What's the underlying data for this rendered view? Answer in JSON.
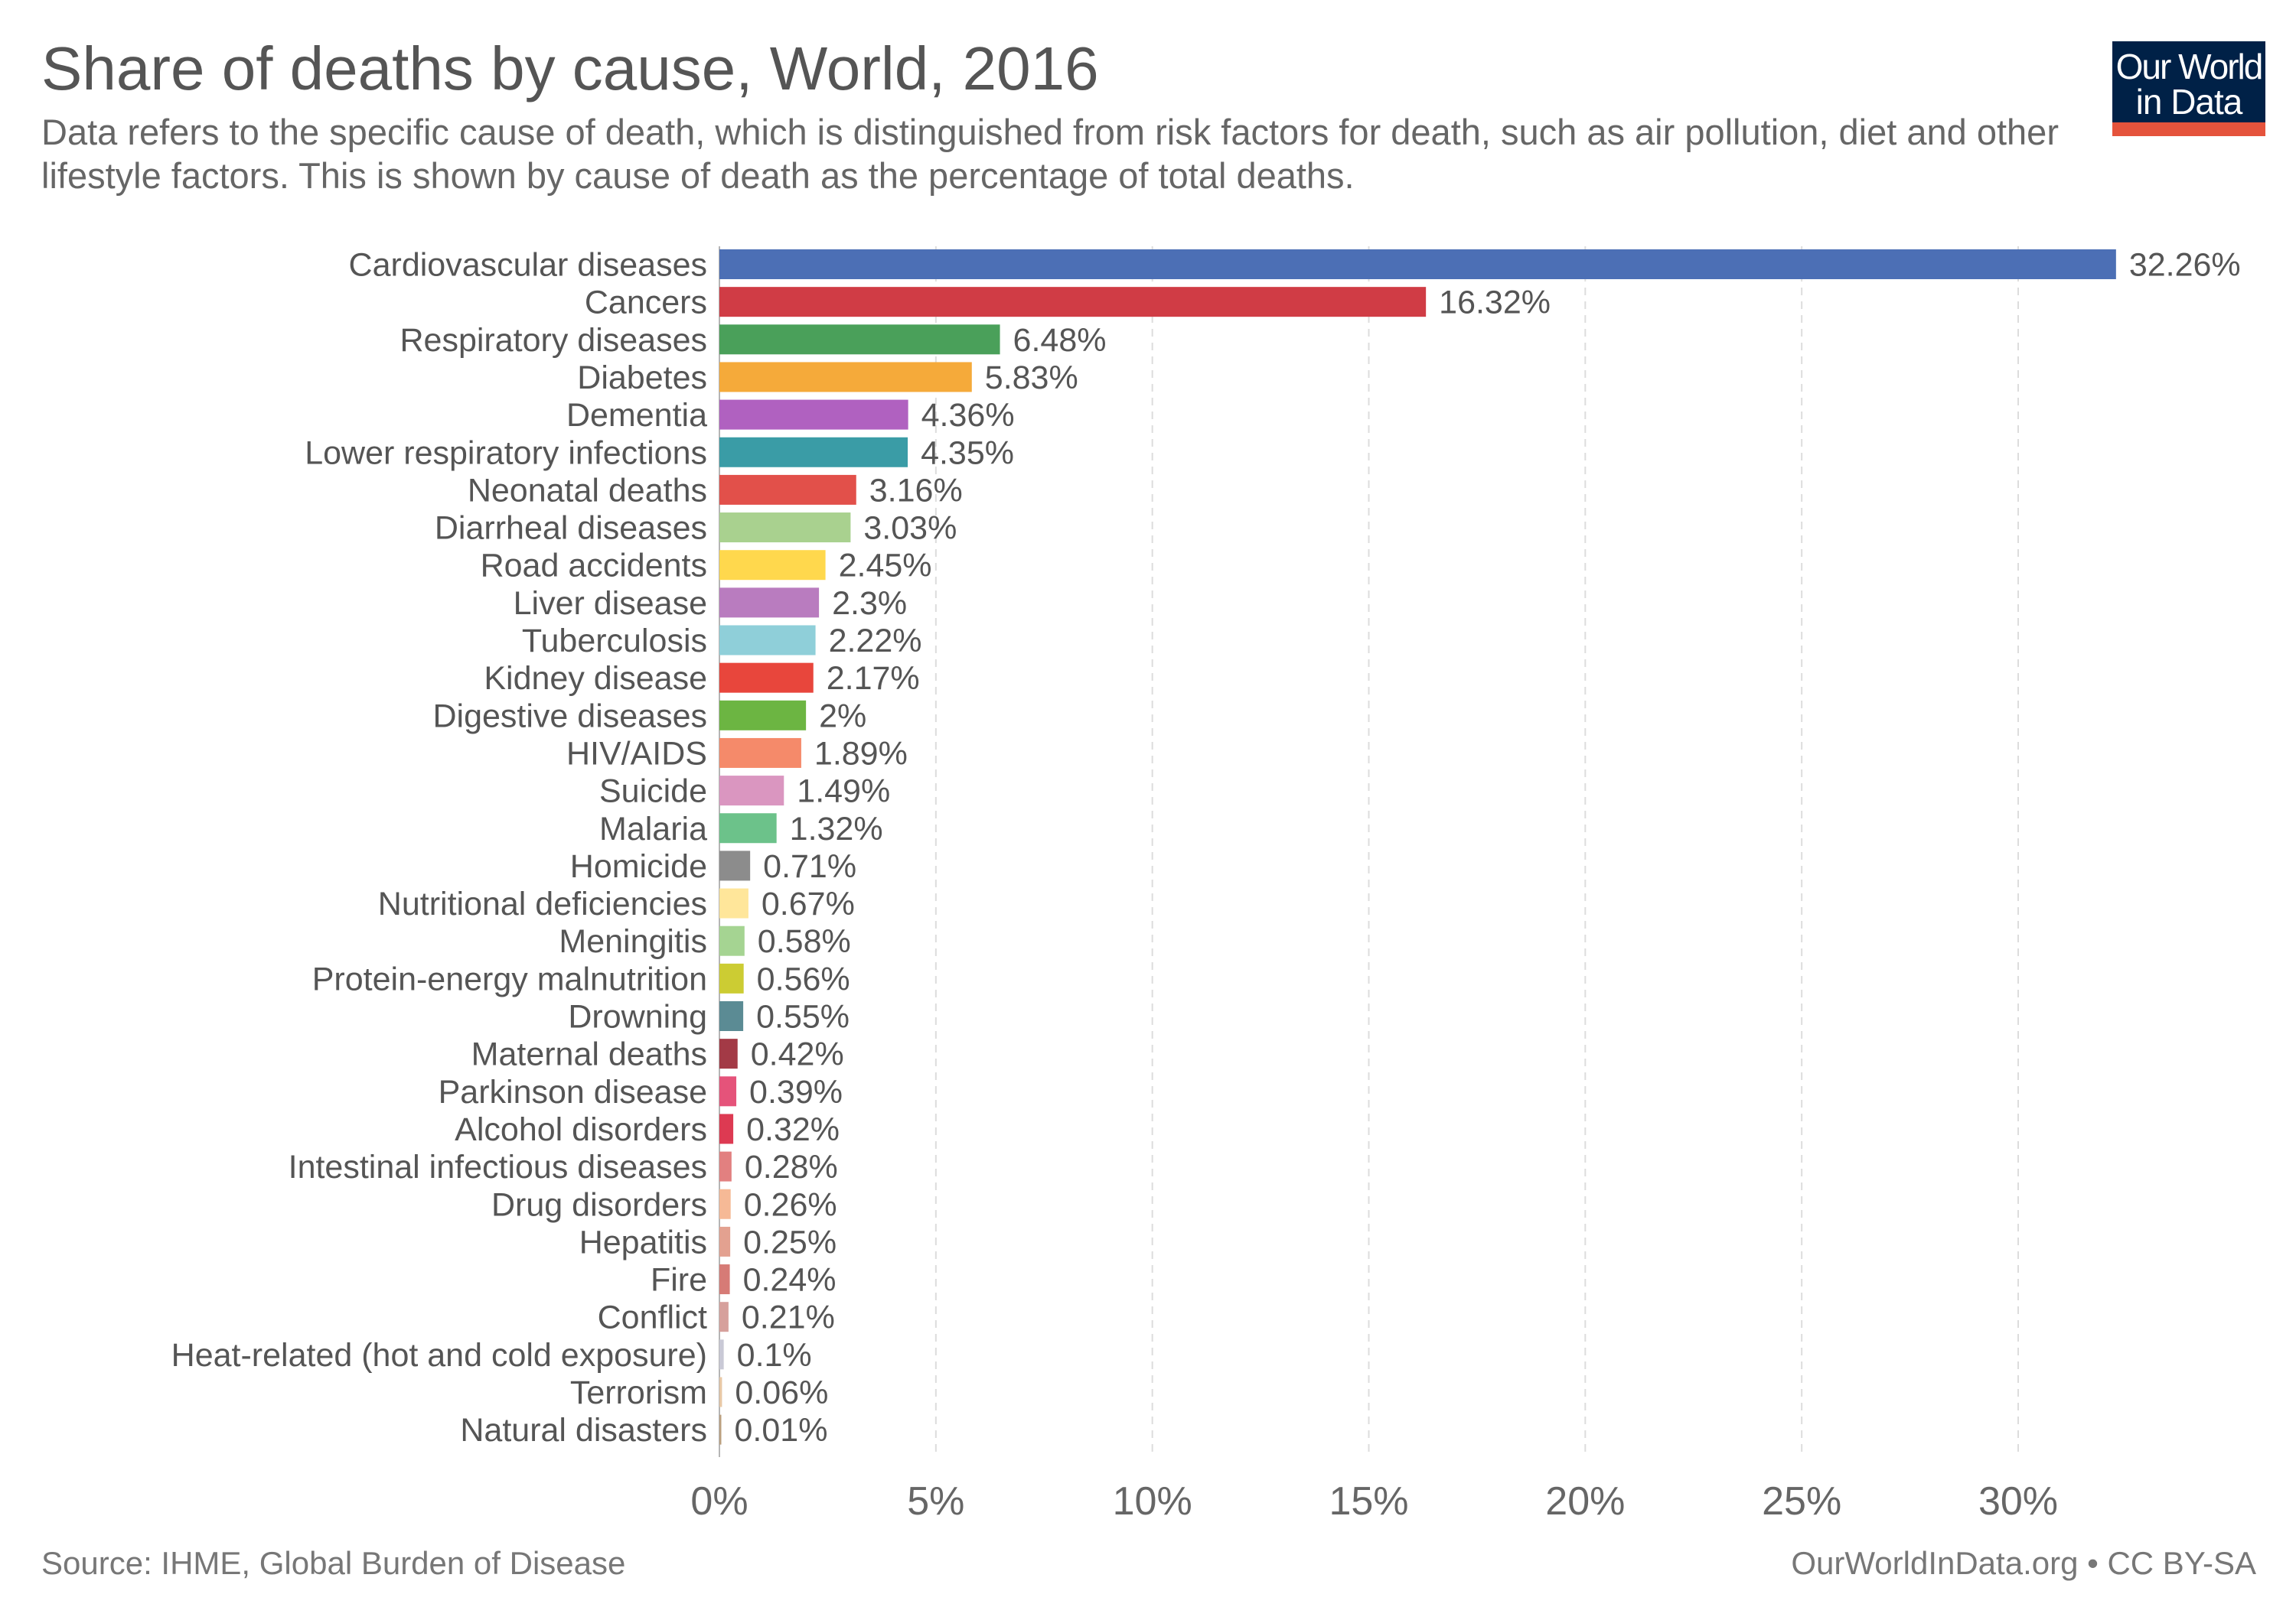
{
  "header": {
    "title": "Share of deaths by cause, World, 2016",
    "subtitle": "Data refers to the specific cause of death, which is distinguished from risk factors for death, such as air pollution, diet and other lifestyle factors. This is shown by cause of death as the percentage of total deaths."
  },
  "logo": {
    "line1": "Our World",
    "line2": "in Data",
    "bg_color": "#002147",
    "accent_color": "#e5533c"
  },
  "footer": {
    "source": "Source: IHME, Global Burden of Disease",
    "credit": "OurWorldInData.org • CC BY-SA"
  },
  "chart_data": {
    "type": "bar",
    "orientation": "horizontal",
    "title": "Share of deaths by cause, World, 2016",
    "xlabel": "",
    "ylabel": "",
    "xlim": [
      0,
      33
    ],
    "grid": true,
    "x_ticks": [
      0,
      5,
      10,
      15,
      20,
      25,
      30
    ],
    "x_tick_labels": [
      "0%",
      "5%",
      "10%",
      "15%",
      "20%",
      "25%",
      "30%"
    ],
    "categories": [
      "Cardiovascular diseases",
      "Cancers",
      "Respiratory diseases",
      "Diabetes",
      "Dementia",
      "Lower respiratory infections",
      "Neonatal deaths",
      "Diarrheal diseases",
      "Road accidents",
      "Liver disease",
      "Tuberculosis",
      "Kidney disease",
      "Digestive diseases",
      "HIV/AIDS",
      "Suicide",
      "Malaria",
      "Homicide",
      "Nutritional deficiencies",
      "Meningitis",
      "Protein-energy malnutrition",
      "Drowning",
      "Maternal deaths",
      "Parkinson disease",
      "Alcohol disorders",
      "Intestinal infectious diseases",
      "Drug disorders",
      "Hepatitis",
      "Fire",
      "Conflict",
      "Heat-related (hot and cold exposure)",
      "Terrorism",
      "Natural disasters"
    ],
    "values": [
      32.26,
      16.32,
      6.48,
      5.83,
      4.36,
      4.35,
      3.16,
      3.03,
      2.45,
      2.3,
      2.22,
      2.17,
      2,
      1.89,
      1.49,
      1.32,
      0.71,
      0.67,
      0.58,
      0.56,
      0.55,
      0.42,
      0.39,
      0.32,
      0.28,
      0.26,
      0.25,
      0.24,
      0.21,
      0.1,
      0.06,
      0.01
    ],
    "value_labels": [
      "32.26%",
      "16.32%",
      "6.48%",
      "5.83%",
      "4.36%",
      "4.35%",
      "3.16%",
      "3.03%",
      "2.45%",
      "2.3%",
      "2.22%",
      "2.17%",
      "2%",
      "1.89%",
      "1.49%",
      "1.32%",
      "0.71%",
      "0.67%",
      "0.58%",
      "0.56%",
      "0.55%",
      "0.42%",
      "0.39%",
      "0.32%",
      "0.28%",
      "0.26%",
      "0.25%",
      "0.24%",
      "0.21%",
      "0.1%",
      "0.06%",
      "0.01%"
    ],
    "colors": [
      "#4c6fb5",
      "#d03c45",
      "#4aa05a",
      "#f5aa3a",
      "#b061c0",
      "#3a9ca6",
      "#e2504a",
      "#a9d18f",
      "#ffd84d",
      "#b97cbf",
      "#8fcfd9",
      "#e8463c",
      "#6cb542",
      "#f58a6a",
      "#da96c0",
      "#6cc28a",
      "#8c8c8c",
      "#ffe69a",
      "#a5d492",
      "#cccc33",
      "#5b8b94",
      "#a33a46",
      "#e5537a",
      "#dd3a52",
      "#e28080",
      "#f6b996",
      "#e3a190",
      "#d67b76",
      "#d6a09c",
      "#c9c9d6",
      "#e8c8a6",
      "#bba080"
    ]
  }
}
